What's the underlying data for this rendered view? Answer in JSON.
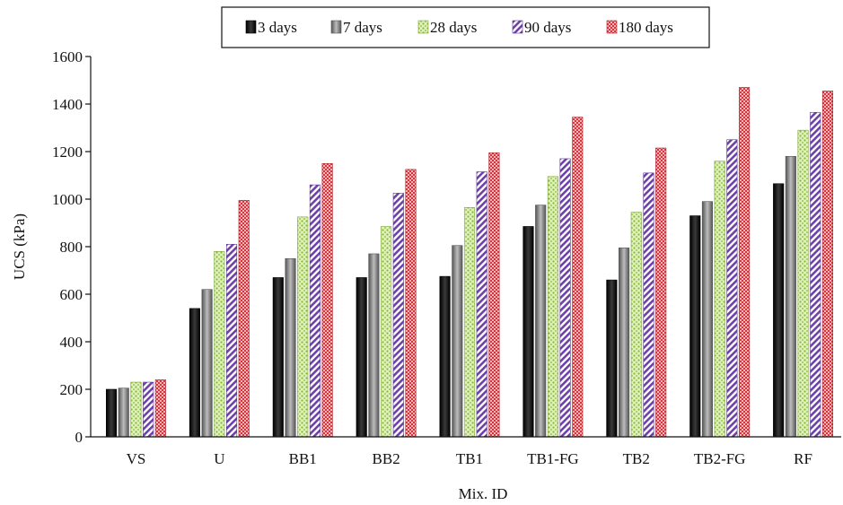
{
  "chart_data": {
    "type": "bar",
    "title": "",
    "xlabel": "Mix. ID",
    "ylabel": "UCS (kPa)",
    "ylim": [
      0,
      1600
    ],
    "yticks": [
      0,
      200,
      400,
      600,
      800,
      1000,
      1200,
      1400,
      1600
    ],
    "grid": false,
    "legend_position": "top",
    "categories": [
      "VS",
      "U",
      "BB1",
      "BB2",
      "TB1",
      "TB1-FG",
      "TB2",
      "TB2-FG",
      "RF"
    ],
    "series": [
      {
        "name": "3 days",
        "color": "#1a1a1a",
        "pattern": "solid-dark",
        "values": [
          200,
          540,
          670,
          670,
          675,
          885,
          660,
          930,
          1065
        ]
      },
      {
        "name": "7 days",
        "color": "#8c8c8c",
        "pattern": "solid-grey",
        "values": [
          205,
          620,
          750,
          770,
          805,
          975,
          795,
          990,
          1180
        ]
      },
      {
        "name": "28 days",
        "color": "#9ccc4a",
        "pattern": "dotted-green",
        "values": [
          230,
          780,
          925,
          885,
          965,
          1095,
          945,
          1160,
          1290
        ]
      },
      {
        "name": "90 days",
        "color": "#7a4fb0",
        "pattern": "diagonal-purple",
        "values": [
          230,
          810,
          1060,
          1025,
          1115,
          1170,
          1110,
          1250,
          1365
        ]
      },
      {
        "name": "180 days",
        "color": "#d8323a",
        "pattern": "checker-red",
        "values": [
          240,
          995,
          1150,
          1125,
          1195,
          1345,
          1215,
          1470,
          1455
        ]
      }
    ]
  }
}
